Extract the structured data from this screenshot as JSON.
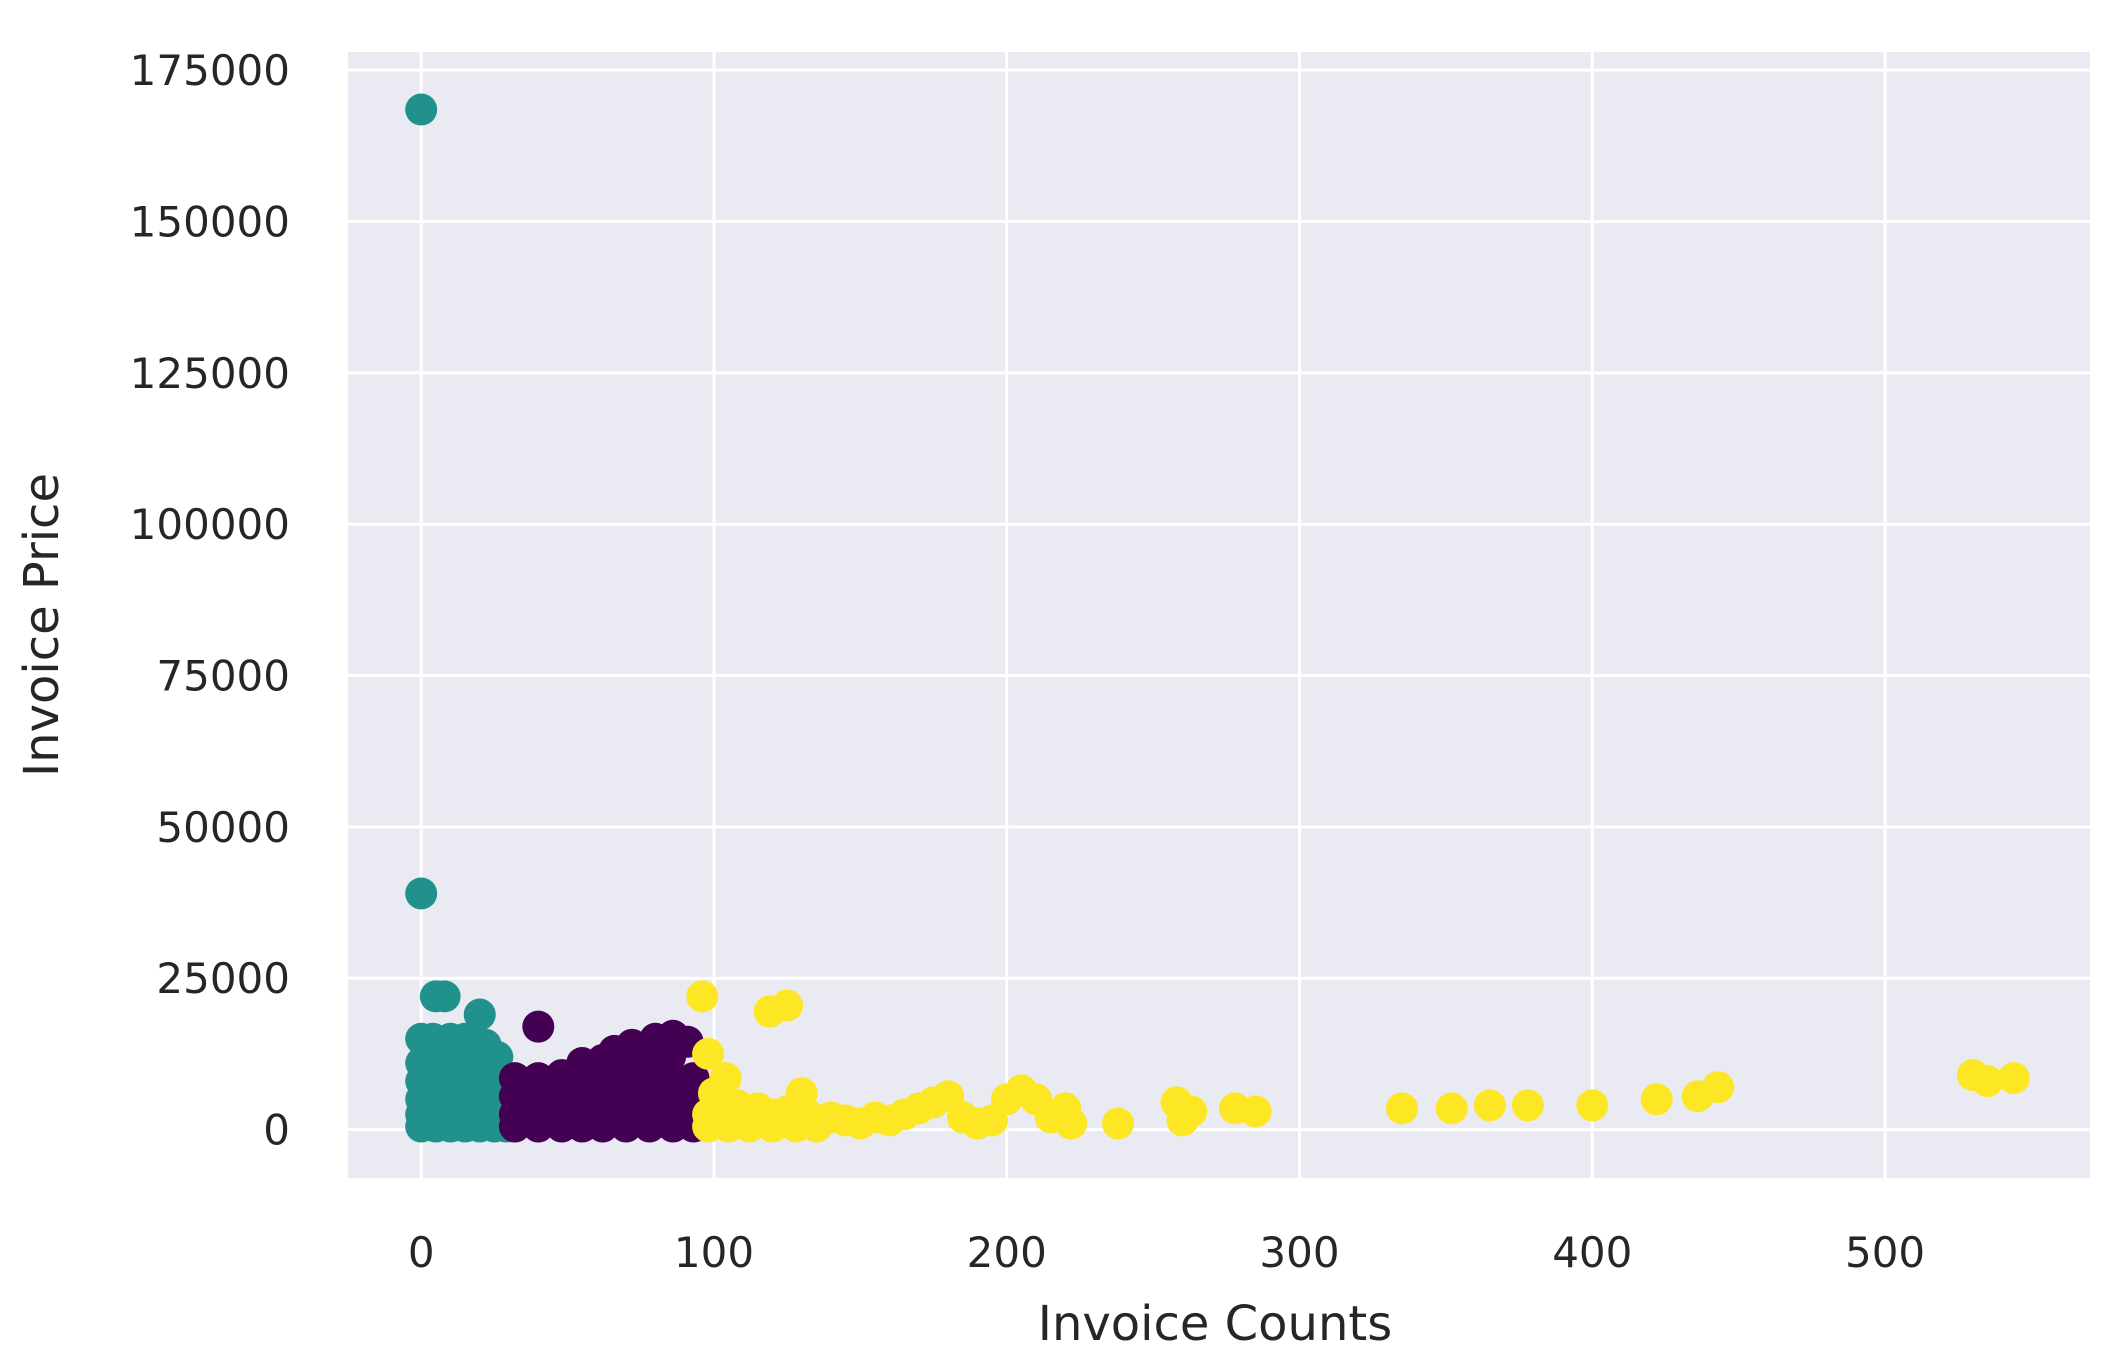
{
  "chart_data": {
    "type": "scatter",
    "title": "",
    "xlabel": "Invoice Counts",
    "ylabel": "Invoice Price",
    "xlim": [
      -25,
      570
    ],
    "ylim": [
      -8000,
      178000
    ],
    "xticks": [
      0,
      100,
      200,
      300,
      400,
      500
    ],
    "yticks": [
      0,
      25000,
      50000,
      75000,
      100000,
      125000,
      150000,
      175000
    ],
    "grid": true,
    "legend": "none",
    "colors": {
      "background": "#e9eaf2",
      "grid": "#ffffff",
      "text": "#262626"
    },
    "series": [
      {
        "color": "#21918c",
        "points": [
          [
            0,
            168500
          ],
          [
            0,
            39000
          ],
          [
            5,
            22000
          ],
          [
            8,
            22000
          ],
          [
            20,
            19000
          ],
          [
            22,
            14000
          ],
          [
            0,
            15000
          ],
          [
            4,
            15000
          ],
          [
            10,
            15000
          ],
          [
            15,
            15000
          ],
          [
            26,
            12000
          ],
          [
            0,
            11000
          ],
          [
            6,
            11000
          ],
          [
            12,
            11000
          ],
          [
            18,
            11000
          ],
          [
            24,
            11000
          ],
          [
            0,
            8000
          ],
          [
            5,
            8000
          ],
          [
            10,
            8000
          ],
          [
            15,
            8000
          ],
          [
            20,
            8000
          ],
          [
            25,
            8000
          ],
          [
            28,
            8000
          ],
          [
            0,
            5000
          ],
          [
            5,
            5000
          ],
          [
            10,
            5000
          ],
          [
            15,
            5000
          ],
          [
            20,
            5000
          ],
          [
            25,
            5000
          ],
          [
            29,
            5000
          ],
          [
            0,
            2500
          ],
          [
            5,
            2500
          ],
          [
            10,
            2500
          ],
          [
            15,
            2500
          ],
          [
            20,
            2500
          ],
          [
            25,
            2500
          ],
          [
            29,
            2500
          ],
          [
            0,
            500
          ],
          [
            5,
            500
          ],
          [
            10,
            500
          ],
          [
            15,
            500
          ],
          [
            20,
            500
          ],
          [
            25,
            500
          ],
          [
            29,
            500
          ],
          [
            2,
            3500
          ],
          [
            8,
            3500
          ],
          [
            13,
            6500
          ],
          [
            18,
            6500
          ],
          [
            23,
            3500
          ],
          [
            27,
            6500
          ]
        ]
      },
      {
        "color": "#440154",
        "points": [
          [
            40,
            17000
          ],
          [
            72,
            14000
          ],
          [
            80,
            15000
          ],
          [
            86,
            15500
          ],
          [
            91,
            14500
          ],
          [
            66,
            13000
          ],
          [
            55,
            11000
          ],
          [
            62,
            11500
          ],
          [
            75,
            12000
          ],
          [
            85,
            12000
          ],
          [
            32,
            8500
          ],
          [
            40,
            8500
          ],
          [
            48,
            9000
          ],
          [
            55,
            8500
          ],
          [
            62,
            8500
          ],
          [
            70,
            8500
          ],
          [
            78,
            8500
          ],
          [
            86,
            8500
          ],
          [
            93,
            8500
          ],
          [
            32,
            5500
          ],
          [
            40,
            5500
          ],
          [
            48,
            5500
          ],
          [
            55,
            5500
          ],
          [
            62,
            5500
          ],
          [
            70,
            5500
          ],
          [
            78,
            5500
          ],
          [
            86,
            5500
          ],
          [
            93,
            5500
          ],
          [
            32,
            2500
          ],
          [
            40,
            2500
          ],
          [
            48,
            2500
          ],
          [
            55,
            2500
          ],
          [
            62,
            2500
          ],
          [
            70,
            2500
          ],
          [
            78,
            2500
          ],
          [
            86,
            2500
          ],
          [
            93,
            2500
          ],
          [
            32,
            500
          ],
          [
            40,
            500
          ],
          [
            48,
            500
          ],
          [
            55,
            500
          ],
          [
            62,
            500
          ],
          [
            70,
            500
          ],
          [
            78,
            500
          ],
          [
            86,
            500
          ],
          [
            93,
            500
          ],
          [
            36,
            4000
          ],
          [
            44,
            4000
          ],
          [
            52,
            7000
          ],
          [
            60,
            4000
          ],
          [
            68,
            7000
          ],
          [
            76,
            4000
          ],
          [
            84,
            7000
          ],
          [
            90,
            4000
          ]
        ]
      },
      {
        "color": "#fde725",
        "points": [
          [
            96,
            22000
          ],
          [
            119,
            19500
          ],
          [
            125,
            20500
          ],
          [
            98,
            12500
          ],
          [
            104,
            8500
          ],
          [
            100,
            6000
          ],
          [
            130,
            6000
          ],
          [
            108,
            4000
          ],
          [
            115,
            3500
          ],
          [
            120,
            2500
          ],
          [
            98,
            500
          ],
          [
            105,
            500
          ],
          [
            112,
            500
          ],
          [
            120,
            500
          ],
          [
            128,
            500
          ],
          [
            135,
            500
          ],
          [
            98,
            2500
          ],
          [
            105,
            2500
          ],
          [
            112,
            2500
          ],
          [
            125,
            3000
          ],
          [
            132,
            2500
          ],
          [
            140,
            2000
          ],
          [
            145,
            1500
          ],
          [
            150,
            1000
          ],
          [
            155,
            2000
          ],
          [
            160,
            1500
          ],
          [
            165,
            2500
          ],
          [
            170,
            3500
          ],
          [
            175,
            4500
          ],
          [
            180,
            5500
          ],
          [
            185,
            2000
          ],
          [
            190,
            1000
          ],
          [
            195,
            1500
          ],
          [
            200,
            5000
          ],
          [
            205,
            6500
          ],
          [
            210,
            5000
          ],
          [
            215,
            2000
          ],
          [
            220,
            3500
          ],
          [
            222,
            1000
          ],
          [
            238,
            1000
          ],
          [
            258,
            4500
          ],
          [
            260,
            1500
          ],
          [
            263,
            3000
          ],
          [
            278,
            3500
          ],
          [
            285,
            3000
          ],
          [
            335,
            3500
          ],
          [
            352,
            3500
          ],
          [
            365,
            4000
          ],
          [
            378,
            4000
          ],
          [
            400,
            4000
          ],
          [
            422,
            5000
          ],
          [
            436,
            5500
          ],
          [
            443,
            7000
          ],
          [
            530,
            9000
          ],
          [
            535,
            8000
          ],
          [
            544,
            8500
          ]
        ]
      }
    ]
  }
}
